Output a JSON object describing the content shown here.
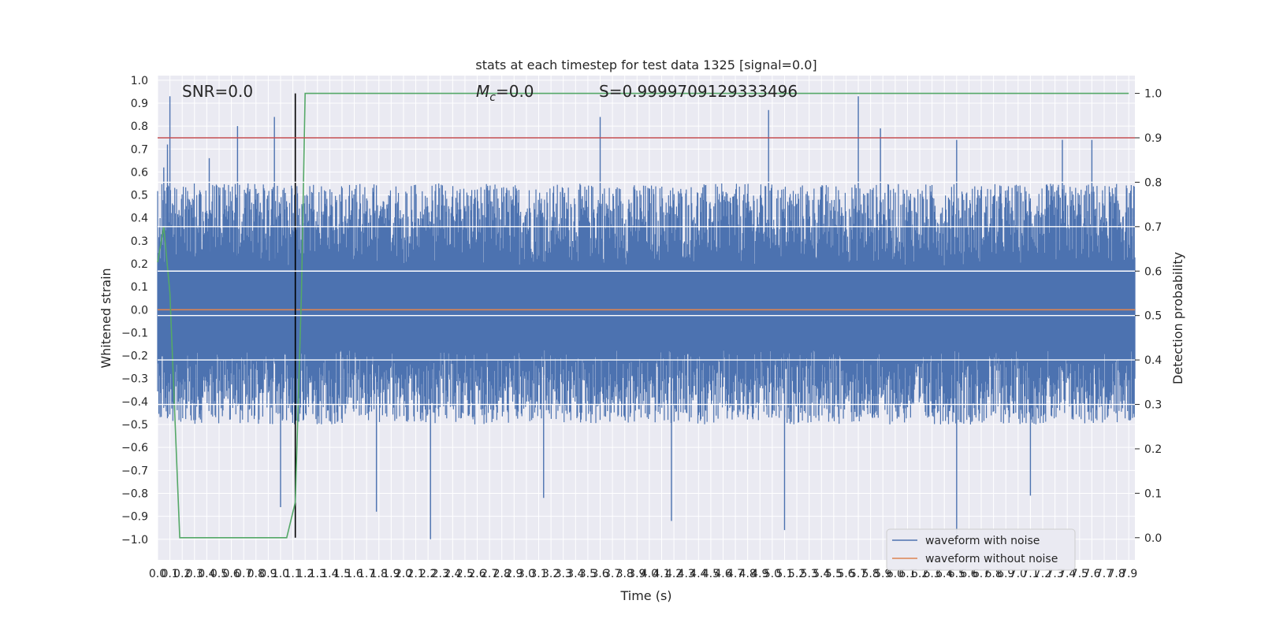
{
  "chart_data": {
    "type": "line",
    "title": "stats at each timestep for test data 1325 [signal=0.0]",
    "xlabel": "Time (s)",
    "ylabel": "Whitened strain",
    "y2label": "Detection probability",
    "xlim": [
      0.0,
      7.95
    ],
    "ylim": [
      -1.09,
      1.02
    ],
    "y2lim": [
      -0.05,
      1.04
    ],
    "x_ticks": [
      0.0,
      0.1,
      0.2,
      0.3,
      0.4,
      0.5,
      0.6,
      0.7,
      0.8,
      0.9,
      1.0,
      1.1,
      1.2,
      1.3,
      1.4,
      1.5,
      1.6,
      1.7,
      1.8,
      1.9,
      2.0,
      2.1,
      2.2,
      2.3,
      2.4,
      2.5,
      2.6,
      2.7,
      2.8,
      2.9,
      3.0,
      3.1,
      3.2,
      3.3,
      3.4,
      3.5,
      3.6,
      3.7,
      3.8,
      3.9,
      4.0,
      4.1,
      4.2,
      4.3,
      4.4,
      4.5,
      4.6,
      4.7,
      4.8,
      4.9,
      5.0,
      5.1,
      5.2,
      5.3,
      5.4,
      5.5,
      5.6,
      5.7,
      5.8,
      5.9,
      6.0,
      6.1,
      6.2,
      6.3,
      6.4,
      6.5,
      6.6,
      6.7,
      6.8,
      6.9,
      7.0,
      7.1,
      7.2,
      7.3,
      7.4,
      7.5,
      7.6,
      7.7,
      7.8,
      7.9
    ],
    "x_tick_labels": [
      "0.0",
      "0.1",
      "0.2",
      "0.3",
      "0.4",
      "0.5",
      "0.6",
      "0.7",
      "0.8",
      "0.9",
      "1.0",
      "1.1",
      "1.2",
      "1.3",
      "1.4",
      "1.5",
      "1.6",
      "1.7",
      "1.8",
      "1.9",
      "2.0",
      "2.1",
      "2.2",
      "2.3",
      "2.4",
      "2.5",
      "2.6",
      "2.7",
      "2.8",
      "2.9",
      "3.0",
      "3.1",
      "3.2",
      "3.3",
      "3.4",
      "3.5",
      "3.6",
      "3.7",
      "3.8",
      "3.9",
      "4.0",
      "4.1",
      "4.2",
      "4.3",
      "4.4",
      "4.5",
      "4.6",
      "4.7",
      "4.8",
      "4.9",
      "5.0",
      "5.1",
      "5.2",
      "5.3",
      "5.4",
      "5.5",
      "5.6",
      "5.7",
      "5.8",
      "5.9",
      "6.0",
      "6.1",
      "6.2",
      "6.3",
      "6.4",
      "6.5",
      "6.6",
      "6.7",
      "6.8",
      "6.9",
      "7.0",
      "7.1",
      "7.2",
      "7.3",
      "7.4",
      "7.5",
      "7.6",
      "7.7",
      "7.8",
      "7.9"
    ],
    "y_ticks": [
      -1.0,
      -0.9,
      -0.8,
      -0.7,
      -0.6,
      -0.5,
      -0.4,
      -0.3,
      -0.2,
      -0.1,
      0.0,
      0.1,
      0.2,
      0.3,
      0.4,
      0.5,
      0.6,
      0.7,
      0.8,
      0.9,
      1.0
    ],
    "y_tick_labels": [
      "−1.0",
      "−0.9",
      "−0.8",
      "−0.7",
      "−0.6",
      "−0.5",
      "−0.4",
      "−0.3",
      "−0.2",
      "−0.1",
      "0.0",
      "0.1",
      "0.2",
      "0.3",
      "0.4",
      "0.5",
      "0.6",
      "0.7",
      "0.8",
      "0.9",
      "1.0"
    ],
    "y2_ticks": [
      0.0,
      0.1,
      0.2,
      0.3,
      0.4,
      0.5,
      0.6,
      0.7,
      0.8,
      0.9,
      1.0
    ],
    "y2_tick_labels": [
      "0.0",
      "0.1",
      "0.2",
      "0.3",
      "0.4",
      "0.5",
      "0.6",
      "0.7",
      "0.8",
      "0.9",
      "1.0"
    ],
    "grid": true,
    "legend_position": "lower-right",
    "annotations": {
      "snr": "SNR=0.0",
      "mc": "=0.0",
      "mc_symbol": "M",
      "mc_sub": "c",
      "s": "S=0.9999709129333496"
    },
    "series": [
      {
        "name": "waveform with noise",
        "axis": "left",
        "color": "#4c72b0",
        "kind": "noise",
        "envelope_upper": 0.55,
        "envelope_lower": -0.5,
        "peaks": [
          [
            0.05,
            0.62
          ],
          [
            0.1,
            0.93
          ],
          [
            0.08,
            0.72
          ],
          [
            0.42,
            0.66
          ],
          [
            0.65,
            0.8
          ],
          [
            0.95,
            0.84
          ],
          [
            3.6,
            0.84
          ],
          [
            4.97,
            0.87
          ],
          [
            5.7,
            0.93
          ],
          [
            5.88,
            0.79
          ],
          [
            6.5,
            0.74
          ],
          [
            7.36,
            0.74
          ],
          [
            7.6,
            0.74
          ],
          [
            1.78,
            -0.88
          ],
          [
            2.22,
            -1.0
          ],
          [
            3.14,
            -0.82
          ],
          [
            4.18,
            -0.92
          ],
          [
            5.1,
            -0.96
          ],
          [
            6.5,
            -1.0
          ],
          [
            7.1,
            -0.81
          ],
          [
            1.0,
            -0.86
          ]
        ]
      },
      {
        "name": "waveform without noise",
        "axis": "left",
        "color": "#dd8452",
        "x": [
          0.0,
          7.95
        ],
        "y": [
          0.0,
          0.0
        ]
      },
      {
        "name": "",
        "axis": "right",
        "color": "#55a868",
        "x": [
          0.0,
          0.05,
          0.1,
          0.18,
          0.25,
          0.6,
          1.05,
          1.12,
          1.17,
          1.2,
          7.9
        ],
        "y": [
          0.62,
          0.7,
          0.55,
          0.0,
          0.0,
          0.0,
          0.0,
          0.08,
          0.55,
          1.0,
          1.0
        ]
      }
    ],
    "hlines": [
      {
        "axis": "right",
        "value": 0.9,
        "color": "#c44e52"
      },
      {
        "axis": "right",
        "value": 0.8,
        "color": "#ffffff"
      },
      {
        "axis": "right",
        "value": 0.7,
        "color": "#ffffff"
      },
      {
        "axis": "right",
        "value": 0.6,
        "color": "#ffffff"
      },
      {
        "axis": "right",
        "value": 0.5,
        "color": "#ffffff"
      },
      {
        "axis": "right",
        "value": 0.4,
        "color": "#ffffff"
      },
      {
        "axis": "right",
        "value": 0.3,
        "color": "#ffffff"
      }
    ],
    "vline": {
      "x": 1.12,
      "color": "#000000",
      "ymin": 0.0,
      "ymax": 1.0
    }
  }
}
